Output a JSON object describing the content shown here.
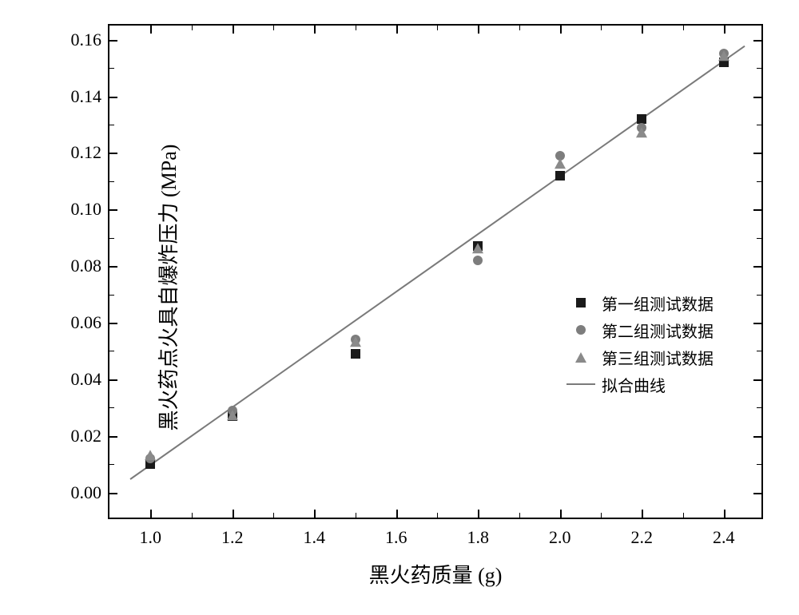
{
  "chart": {
    "type": "scatter",
    "background_color": "#ffffff",
    "border_color": "#000000",
    "xlabel": "黑火药质量 (g)",
    "ylabel": "黑火药点火具自爆炸压力 (MPa)",
    "label_fontsize": 26,
    "tick_fontsize": 22,
    "xlim": [
      0.9,
      2.5
    ],
    "ylim": [
      -0.01,
      0.165
    ],
    "xticks": [
      1.0,
      1.2,
      1.4,
      1.6,
      1.8,
      2.0,
      2.2,
      2.4
    ],
    "xtick_labels": [
      "1.0",
      "1.2",
      "1.4",
      "1.6",
      "1.8",
      "2.0",
      "2.2",
      "2.4"
    ],
    "yticks": [
      0.0,
      0.02,
      0.04,
      0.06,
      0.08,
      0.1,
      0.12,
      0.14,
      0.16
    ],
    "ytick_labels": [
      "0.00",
      "0.02",
      "0.04",
      "0.06",
      "0.08",
      "0.10",
      "0.12",
      "0.14",
      "0.16"
    ],
    "minor_tick_count": 1,
    "series": [
      {
        "name": "第一组测试数据",
        "marker": "square",
        "color": "#1a1a1a",
        "x": [
          1.0,
          1.2,
          1.5,
          1.8,
          2.0,
          2.2,
          2.4
        ],
        "y": [
          0.01,
          0.027,
          0.049,
          0.087,
          0.112,
          0.132,
          0.152
        ]
      },
      {
        "name": "第二组测试数据",
        "marker": "circle",
        "color": "#7d7d7d",
        "x": [
          1.0,
          1.2,
          1.5,
          1.8,
          2.0,
          2.2,
          2.4
        ],
        "y": [
          0.012,
          0.029,
          0.054,
          0.082,
          0.119,
          0.129,
          0.155
        ]
      },
      {
        "name": "第三组测试数据",
        "marker": "triangle",
        "color": "#8a8a8a",
        "x": [
          1.0,
          1.2,
          1.5,
          1.8,
          2.0,
          2.2,
          2.4
        ],
        "y": [
          0.013,
          0.027,
          0.053,
          0.086,
          0.116,
          0.127,
          0.154
        ]
      }
    ],
    "fit_line": {
      "name": "拟合曲线",
      "color": "#7a7a7a",
      "width": 2,
      "x1": 0.95,
      "y1": 0.005,
      "x2": 2.45,
      "y2": 0.158
    },
    "legend": {
      "position": "lower-right-inside",
      "fontsize": 20,
      "items": [
        {
          "marker": "square",
          "color": "#1a1a1a",
          "label": "第一组测试数据"
        },
        {
          "marker": "circle",
          "color": "#7d7d7d",
          "label": "第二组测试数据"
        },
        {
          "marker": "triangle",
          "color": "#8a8a8a",
          "label": "第三组测试数据"
        },
        {
          "marker": "line",
          "color": "#7a7a7a",
          "label": "拟合曲线"
        }
      ]
    }
  }
}
